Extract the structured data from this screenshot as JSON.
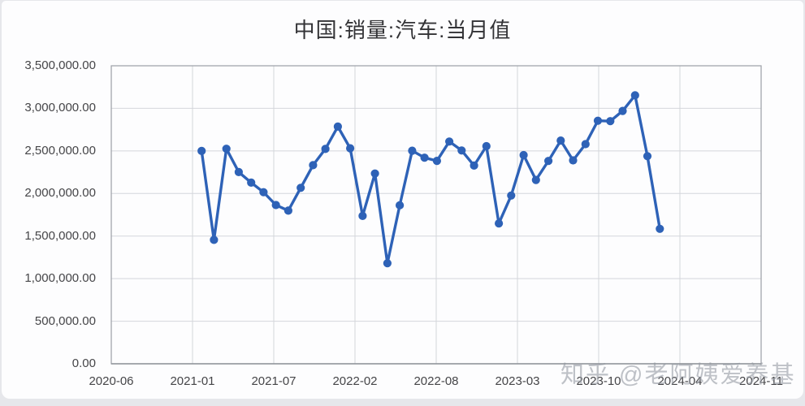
{
  "title": "中国:销量:汽车:当月值",
  "watermark": "知乎 @老阿姨爱养基",
  "colors": {
    "line": "#2e62b7",
    "marker": "#2e62b7",
    "grid": "#d4d6db",
    "plot_border": "#9b9fa6",
    "axis_line": "#8f939a",
    "title_text": "#333336",
    "tick_text": "#454548",
    "watermark_text": "#9499a2",
    "background": "#fdfdfe"
  },
  "chart_data": {
    "type": "line",
    "title": "中国:销量:汽车:当月值",
    "x": [
      "2021-01",
      "2021-02",
      "2021-03",
      "2021-04",
      "2021-05",
      "2021-06",
      "2021-07",
      "2021-08",
      "2021-09",
      "2021-10",
      "2021-11",
      "2021-12",
      "2022-01",
      "2022-02",
      "2022-03",
      "2022-04",
      "2022-05",
      "2022-06",
      "2022-07",
      "2022-08",
      "2022-09",
      "2022-10",
      "2022-11",
      "2022-12",
      "2023-01",
      "2023-02",
      "2023-03",
      "2023-04",
      "2023-05",
      "2023-06",
      "2023-07",
      "2023-08",
      "2023-09",
      "2023-10",
      "2023-11",
      "2023-12",
      "2024-01",
      "2024-02"
    ],
    "values": [
      2500000,
      1455000,
      2525000,
      2252000,
      2128000,
      2015000,
      1864000,
      1799000,
      2067000,
      2333000,
      2523000,
      2786000,
      2531000,
      1737000,
      2234000,
      1181000,
      1862000,
      2502000,
      2420000,
      2383000,
      2610000,
      2505000,
      2328000,
      2556000,
      1649000,
      1976000,
      2451000,
      2159000,
      2382000,
      2622000,
      2389000,
      2580000,
      2854000,
      2850000,
      2970000,
      3153000,
      2439000,
      1585000
    ],
    "series_name": "中国:销量:汽车:当月值",
    "xlabel": "",
    "ylabel": "",
    "ylim": [
      0,
      3500000
    ],
    "y_tick_step": 500000,
    "y_tick_labels": [
      "3,500,000.00",
      "3,000,000.00",
      "2,500,000.00",
      "2,000,000.00",
      "1,500,000.00",
      "1,000,000.00",
      "500,000.00",
      "0.00"
    ],
    "x_tick_labels": [
      "2020-06",
      "2021-01",
      "2021-07",
      "2022-02",
      "2022-08",
      "2023-03",
      "2023-10",
      "2024-04",
      "2024-11"
    ],
    "grid": true,
    "legend": false
  }
}
